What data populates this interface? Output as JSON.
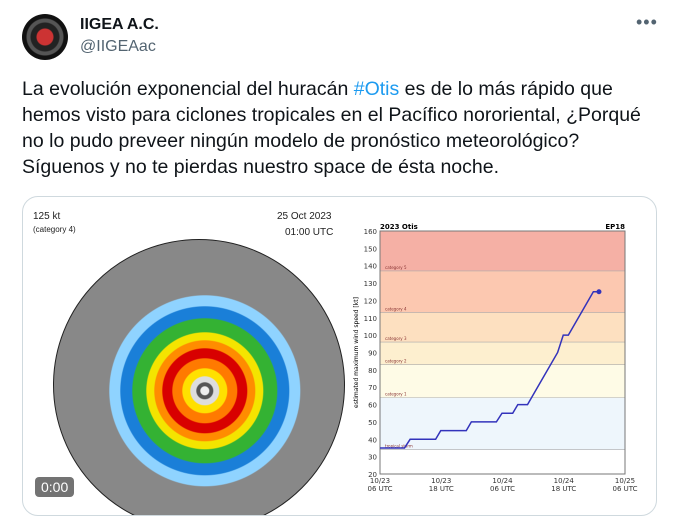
{
  "tweet": {
    "name": "IIGEA A.C.",
    "handle": "@IIGEAac",
    "text_before": "La evolución exponencial del huracán ",
    "hashtag": "#Otis",
    "text_after": " es de lo más rápido que hemos visto para ciclones tropicales en el Pacífico nororiental, ¿Porqué no lo pudo preveer ningún modelo de pronóstico meteorológico? Síguenos y no te pierdas nuestro space de ésta noche.",
    "more_icon": "more-horizontal-icon"
  },
  "media": {
    "intensity": "125 kt",
    "category": "(category 4)",
    "date": "25 Oct 2023",
    "time": "01:00 UTC",
    "video_time": "0:00"
  },
  "chart_data": {
    "type": "line",
    "title": "2023 Otis",
    "id_label": "EP18",
    "ylabel": "estimated maximum wind speed [kt]",
    "ylim": [
      20,
      160
    ],
    "yticks": [
      20,
      30,
      40,
      50,
      60,
      70,
      80,
      90,
      100,
      110,
      120,
      130,
      140,
      150,
      160
    ],
    "xlim_hours": [
      0,
      48
    ],
    "xticks": [
      {
        "h": 0,
        "l1": "10/23",
        "l2": "06 UTC"
      },
      {
        "h": 12,
        "l1": "10/23",
        "l2": "18 UTC"
      },
      {
        "h": 24,
        "l1": "10/24",
        "l2": "06 UTC"
      },
      {
        "h": 36,
        "l1": "10/24",
        "l2": "18 UTC"
      },
      {
        "h": 48,
        "l1": "10/25",
        "l2": "06 UTC"
      }
    ],
    "bands": [
      {
        "from": 34,
        "to": 64,
        "label": "tropical storm",
        "color": "#eef6fc"
      },
      {
        "from": 64,
        "to": 83,
        "label": "category 1",
        "color": "#fefbe6"
      },
      {
        "from": 83,
        "to": 96,
        "label": "category 2",
        "color": "#fdefcf"
      },
      {
        "from": 96,
        "to": 113,
        "label": "category 3",
        "color": "#fde0c0"
      },
      {
        "from": 113,
        "to": 137,
        "label": "category 4",
        "color": "#fcc8b0"
      },
      {
        "from": 137,
        "to": 160,
        "label": "category 5",
        "color": "#f5b0a5"
      }
    ],
    "series": [
      {
        "name": "Otis",
        "color": "#3333bb",
        "x": [
          0,
          4.8,
          5.9,
          10.9,
          11.9,
          16.9,
          17.9,
          22.8,
          23.9,
          26,
          27,
          28.9,
          34.8,
          35.9,
          36.9,
          41.8,
          42.9
        ],
        "y": [
          35,
          35,
          40,
          40,
          45,
          45,
          50,
          50,
          55,
          55,
          60,
          60,
          90,
          100,
          100,
          125,
          125
        ]
      }
    ]
  }
}
